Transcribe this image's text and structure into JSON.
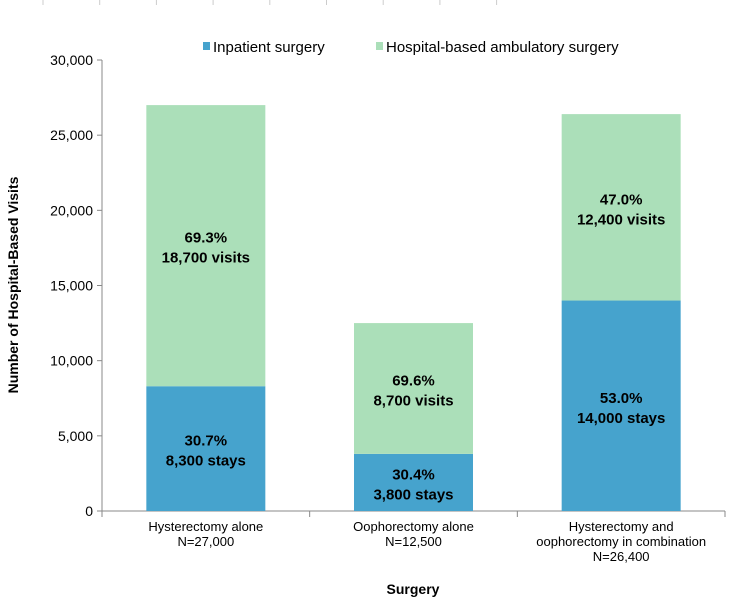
{
  "chart_data": {
    "type": "bar",
    "stacked": true,
    "title": "",
    "xlabel": "Surgery",
    "ylabel": "Number of Hospital-Based Visits",
    "ylim": [
      0,
      30000
    ],
    "yticks": [
      0,
      5000,
      10000,
      15000,
      20000,
      25000,
      30000
    ],
    "ytick_labels": [
      "0",
      "5,000",
      "10,000",
      "15,000",
      "20,000",
      "25,000",
      "30,000"
    ],
    "grid": false,
    "legend_position": "top",
    "categories": [
      [
        "Hysterectomy alone",
        "N=27,000"
      ],
      [
        "Oophorectomy alone",
        "N=12,500"
      ],
      [
        "Hysterectomy and",
        "oophorectomy in combination",
        "N=26,400"
      ]
    ],
    "series": [
      {
        "name": "Inpatient surgery",
        "color": "#46a3cd",
        "values": [
          8300,
          3800,
          14000
        ],
        "labels": [
          [
            "30.7%",
            "8,300 stays"
          ],
          [
            "30.4%",
            "3,800 stays"
          ],
          [
            "53.0%",
            "14,000 stays"
          ]
        ]
      },
      {
        "name": "Hospital-based ambulatory surgery",
        "color": "#abdfb9",
        "values": [
          18700,
          8700,
          12400
        ],
        "labels": [
          [
            "69.3%",
            "18,700 visits"
          ],
          [
            "69.6%",
            "8,700 visits"
          ],
          [
            "47.0%",
            "12,400 visits"
          ]
        ]
      }
    ]
  }
}
